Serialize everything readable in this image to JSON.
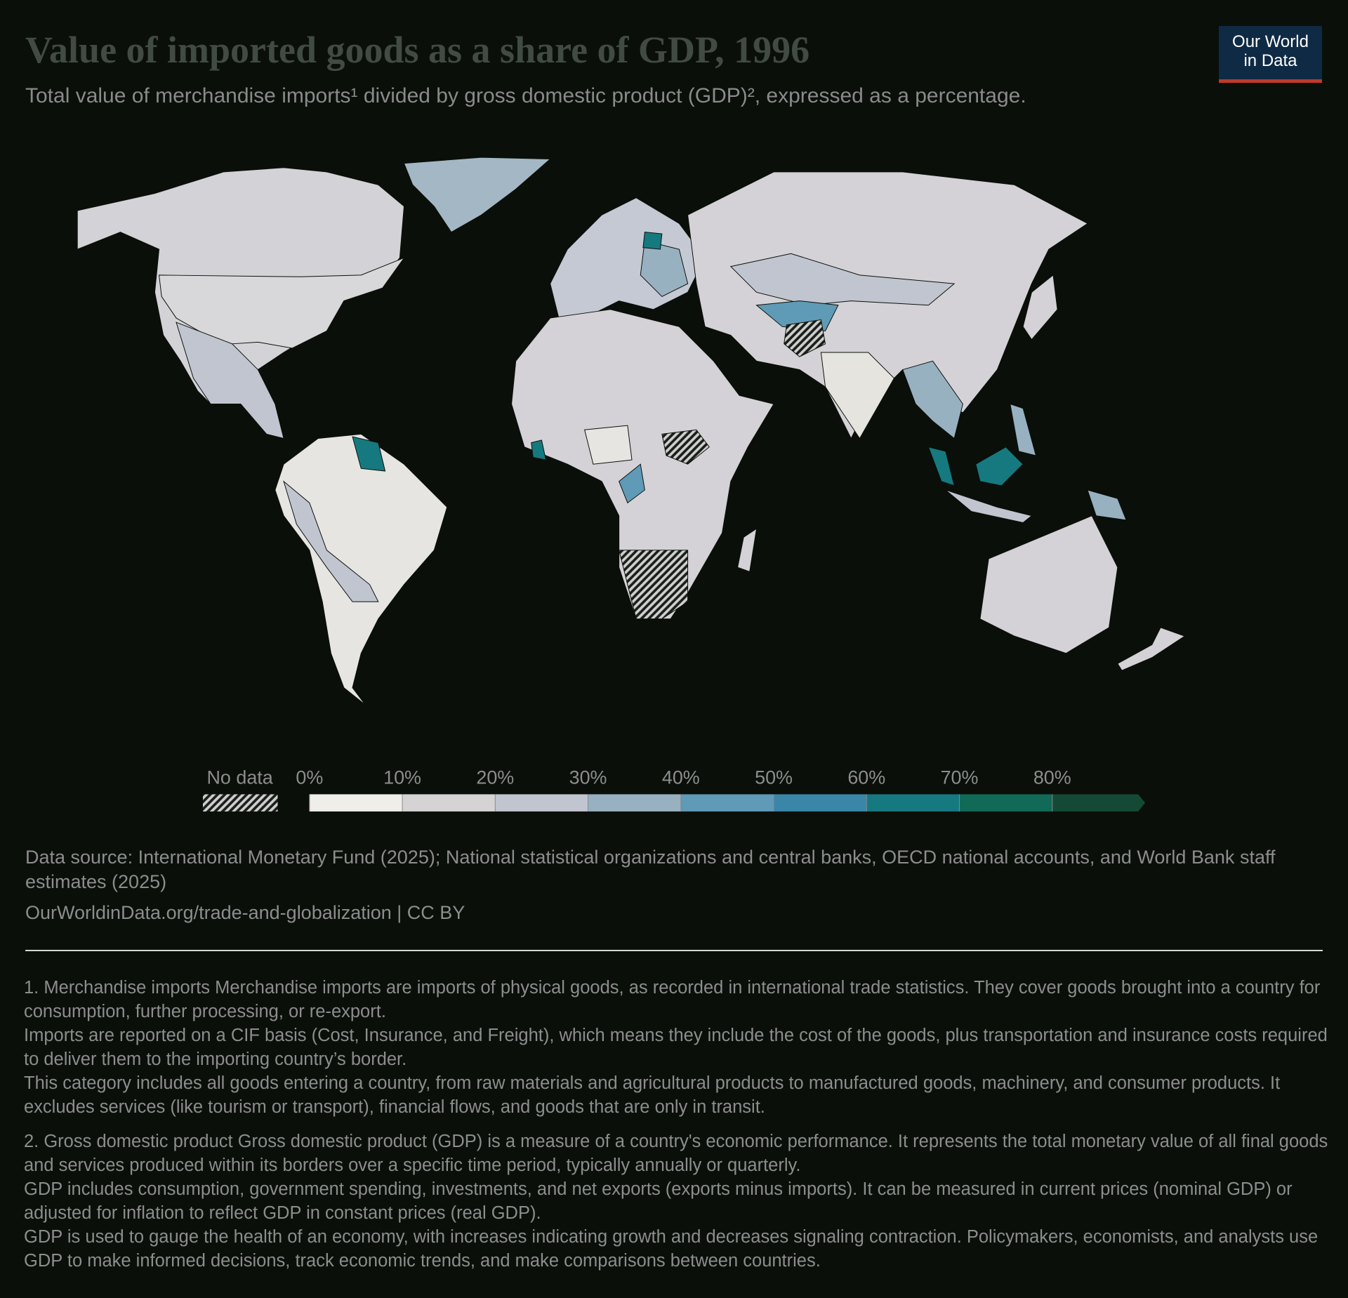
{
  "header": {
    "title": "Value of imported goods as a share of GDP, 1996",
    "subtitle": "Total value of merchandise imports¹ divided by gross domestic product (GDP)², expressed as a percentage."
  },
  "logo": {
    "line1": "Our World",
    "line2": "in Data"
  },
  "legend": {
    "no_data_label": "No data",
    "ticks": [
      {
        "value": 0,
        "label": "0%"
      },
      {
        "value": 10,
        "label": "10%"
      },
      {
        "value": 20,
        "label": "20%"
      },
      {
        "value": 30,
        "label": "30%"
      },
      {
        "value": 40,
        "label": "40%"
      },
      {
        "value": 50,
        "label": "50%"
      },
      {
        "value": 60,
        "label": "60%"
      },
      {
        "value": 70,
        "label": "70%"
      },
      {
        "value": 80,
        "label": "80%"
      }
    ],
    "colors": [
      "#f0eee9",
      "#d6d3d5",
      "#c0c5cf",
      "#97b1c1",
      "#5f9ab6",
      "#3a86a9",
      "#16797f",
      "#106a57",
      "#144a35"
    ]
  },
  "footer": {
    "source": "Data source: International Monetary Fund (2025); National statistical organizations and central banks, OECD national accounts, and World Bank staff estimates (2025)",
    "link": "OurWorldinData.org/trade-and-globalization | CC BY"
  },
  "notes": [
    [
      "1. Merchandise imports Merchandise imports are imports of physical goods, as recorded in international trade statistics. They cover goods brought into a country for consumption, further processing, or re-export.",
      "Imports are reported on a CIF basis (Cost, Insurance, and Freight), which means they include the cost of the goods, plus transportation and insurance costs required to deliver them to the importing country’s border.",
      "This category includes all goods entering a country, from raw materials and agricultural products to manufactured goods, machinery, and consumer products. It excludes services (like tourism or transport), financial flows, and goods that are only in transit."
    ],
    [
      "2. Gross domestic product Gross domestic product (GDP) is a measure of a country's economic performance. It represents the total monetary value of all final goods and services produced within its borders over a specific time period, typically annually or quarterly.",
      "GDP includes consumption, government spending, investments, and net exports (exports minus imports). It can be measured in current prices (nominal GDP) or adjusted for inflation to reflect GDP in constant prices (real GDP).",
      "GDP is used to gauge the health of an economy, with increases indicating growth and decreases signaling contraction. Policymakers, economists, and analysts use GDP to make informed decisions, track economic trends, and make comparisons between countries."
    ]
  ]
}
